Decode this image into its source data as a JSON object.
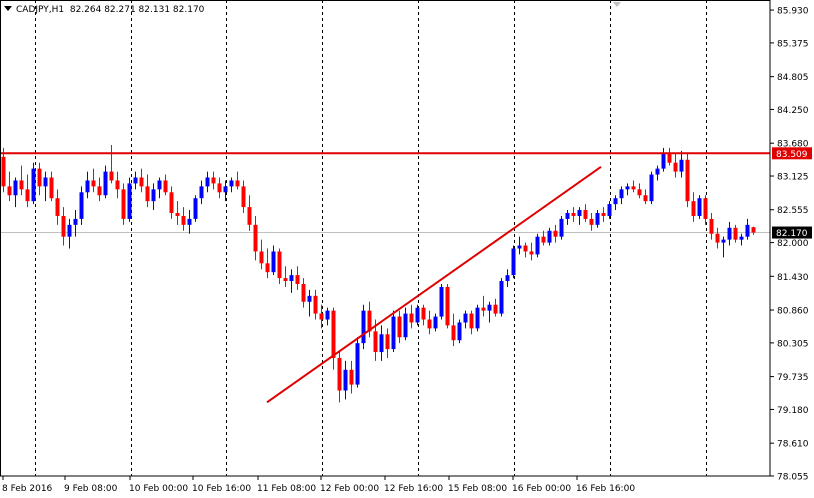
{
  "header": {
    "symbol": "CADJPY,H1",
    "ohlc": "82.264 82.271 82.131 82.170"
  },
  "colors": {
    "bull": "#0000ff",
    "bear": "#ff0000",
    "resistance": "#e00000",
    "trendline": "#e00000",
    "grid": "#000000",
    "current_price_line": "#c0c0c0",
    "axis_label_bg_current": "#000000",
    "axis_label_bg_resistance": "#e00000"
  },
  "chart_data": {
    "type": "candlestick",
    "title": "",
    "xlabel": "",
    "ylabel": "",
    "ylim": [
      78.055,
      86.1
    ],
    "grid": true,
    "price_ticks": [
      "85.930",
      "85.375",
      "84.805",
      "84.250",
      "83.680",
      "83.125",
      "82.555",
      "82.000",
      "81.430",
      "80.860",
      "80.305",
      "79.735",
      "79.180",
      "78.610",
      "78.055"
    ],
    "time_ticks": [
      "8 Feb 2016",
      "9 Feb 08:00",
      "10 Feb 00:00",
      "10 Feb 16:00",
      "11 Feb 08:00",
      "12 Feb 00:00",
      "12 Feb 16:00",
      "15 Feb 08:00",
      "16 Feb 00:00",
      "16 Feb 16:00"
    ],
    "current_price": "82.170",
    "resistance_price": "83.509",
    "trendline": {
      "start_price": 79.3,
      "end_price": 83.28
    },
    "candles": [
      [
        83.45,
        83.6,
        82.85,
        82.95
      ],
      [
        82.95,
        83.2,
        82.7,
        82.8
      ],
      [
        82.8,
        83.1,
        82.6,
        83.05
      ],
      [
        83.05,
        83.3,
        82.8,
        82.9
      ],
      [
        82.9,
        83.15,
        82.6,
        82.7
      ],
      [
        82.7,
        83.35,
        82.65,
        83.25
      ],
      [
        83.25,
        83.35,
        82.8,
        82.95
      ],
      [
        82.95,
        83.2,
        82.7,
        83.1
      ],
      [
        83.1,
        83.2,
        82.7,
        82.75
      ],
      [
        82.75,
        82.9,
        82.3,
        82.45
      ],
      [
        82.45,
        82.6,
        81.95,
        82.1
      ],
      [
        82.1,
        82.4,
        81.9,
        82.3
      ],
      [
        82.3,
        82.55,
        82.1,
        82.4
      ],
      [
        82.4,
        82.95,
        82.3,
        82.85
      ],
      [
        82.85,
        83.2,
        82.75,
        83.05
      ],
      [
        83.05,
        83.25,
        82.85,
        82.95
      ],
      [
        82.95,
        83.1,
        82.7,
        82.8
      ],
      [
        82.8,
        83.3,
        82.75,
        83.2
      ],
      [
        83.2,
        83.65,
        83.0,
        83.05
      ],
      [
        83.05,
        83.2,
        82.75,
        82.9
      ],
      [
        82.9,
        83.0,
        82.3,
        82.4
      ],
      [
        82.4,
        83.1,
        82.35,
        83.0
      ],
      [
        83.0,
        83.2,
        82.9,
        83.1
      ],
      [
        83.1,
        83.25,
        82.85,
        82.95
      ],
      [
        82.95,
        83.15,
        82.6,
        82.7
      ],
      [
        82.7,
        83.0,
        82.55,
        82.9
      ],
      [
        82.9,
        83.1,
        82.75,
        83.05
      ],
      [
        83.05,
        83.15,
        82.8,
        82.85
      ],
      [
        82.85,
        82.95,
        82.4,
        82.5
      ],
      [
        82.5,
        82.7,
        82.3,
        82.45
      ],
      [
        82.45,
        82.6,
        82.2,
        82.3
      ],
      [
        82.3,
        82.55,
        82.15,
        82.4
      ],
      [
        82.4,
        82.8,
        82.35,
        82.75
      ],
      [
        82.75,
        83.05,
        82.65,
        82.95
      ],
      [
        82.95,
        83.2,
        82.85,
        83.1
      ],
      [
        83.1,
        83.2,
        82.9,
        83.0
      ],
      [
        83.0,
        83.1,
        82.75,
        82.85
      ],
      [
        82.85,
        83.05,
        82.7,
        82.95
      ],
      [
        82.95,
        83.1,
        82.85,
        83.05
      ],
      [
        83.05,
        83.2,
        82.9,
        82.95
      ],
      [
        82.95,
        83.05,
        82.5,
        82.6
      ],
      [
        82.6,
        82.8,
        82.2,
        82.3
      ],
      [
        82.3,
        82.45,
        81.7,
        81.85
      ],
      [
        81.85,
        82.05,
        81.55,
        81.65
      ],
      [
        81.65,
        81.9,
        81.4,
        81.5
      ],
      [
        81.5,
        81.95,
        81.45,
        81.85
      ],
      [
        81.85,
        81.9,
        81.3,
        81.4
      ],
      [
        81.4,
        81.6,
        81.25,
        81.35
      ],
      [
        81.35,
        81.55,
        81.15,
        81.45
      ],
      [
        81.45,
        81.6,
        81.2,
        81.3
      ],
      [
        81.3,
        81.4,
        80.9,
        81.0
      ],
      [
        81.0,
        81.2,
        80.75,
        81.1
      ],
      [
        81.1,
        81.2,
        80.7,
        80.8
      ],
      [
        80.8,
        80.95,
        80.55,
        80.7
      ],
      [
        80.7,
        80.9,
        80.6,
        80.85
      ],
      [
        80.85,
        80.9,
        79.85,
        80.05
      ],
      [
        80.05,
        80.15,
        79.3,
        79.5
      ],
      [
        79.5,
        80.0,
        79.35,
        79.85
      ],
      [
        79.85,
        80.0,
        79.45,
        79.6
      ],
      [
        79.6,
        80.4,
        79.55,
        80.3
      ],
      [
        80.3,
        80.95,
        80.2,
        80.85
      ],
      [
        80.85,
        81.0,
        80.4,
        80.5
      ],
      [
        80.5,
        80.7,
        80.0,
        80.15
      ],
      [
        80.15,
        80.6,
        80.0,
        80.45
      ],
      [
        80.45,
        80.55,
        80.05,
        80.2
      ],
      [
        80.2,
        80.85,
        80.15,
        80.75
      ],
      [
        80.75,
        80.85,
        80.3,
        80.4
      ],
      [
        80.4,
        80.9,
        80.35,
        80.8
      ],
      [
        80.8,
        80.95,
        80.55,
        80.65
      ],
      [
        80.65,
        80.95,
        80.6,
        80.9
      ],
      [
        80.9,
        80.95,
        80.6,
        80.7
      ],
      [
        80.7,
        80.85,
        80.45,
        80.55
      ],
      [
        80.55,
        80.8,
        80.5,
        80.75
      ],
      [
        80.75,
        81.3,
        80.7,
        81.25
      ],
      [
        81.25,
        81.3,
        80.55,
        80.6
      ],
      [
        80.6,
        80.8,
        80.25,
        80.35
      ],
      [
        80.35,
        80.7,
        80.3,
        80.65
      ],
      [
        80.65,
        80.85,
        80.55,
        80.8
      ],
      [
        80.8,
        80.85,
        80.45,
        80.55
      ],
      [
        80.55,
        80.95,
        80.5,
        80.9
      ],
      [
        80.9,
        81.1,
        80.75,
        80.85
      ],
      [
        80.85,
        81.0,
        80.65,
        80.95
      ],
      [
        80.95,
        81.05,
        80.75,
        80.8
      ],
      [
        80.8,
        81.4,
        80.75,
        81.35
      ],
      [
        81.35,
        81.55,
        81.25,
        81.45
      ],
      [
        81.45,
        81.95,
        81.4,
        81.9
      ],
      [
        81.9,
        82.1,
        81.8,
        81.95
      ],
      [
        81.95,
        82.0,
        81.75,
        81.85
      ],
      [
        81.85,
        82.0,
        81.7,
        81.8
      ],
      [
        81.8,
        82.15,
        81.75,
        82.1
      ],
      [
        82.1,
        82.2,
        81.95,
        82.0
      ],
      [
        82.0,
        82.25,
        81.95,
        82.2
      ],
      [
        82.2,
        82.3,
        82.0,
        82.1
      ],
      [
        82.1,
        82.45,
        82.05,
        82.4
      ],
      [
        82.4,
        82.55,
        82.3,
        82.5
      ],
      [
        82.5,
        82.6,
        82.35,
        82.45
      ],
      [
        82.45,
        82.6,
        82.3,
        82.55
      ],
      [
        82.55,
        82.65,
        82.35,
        82.4
      ],
      [
        82.4,
        82.5,
        82.2,
        82.3
      ],
      [
        82.3,
        82.55,
        82.25,
        82.5
      ],
      [
        82.5,
        82.6,
        82.35,
        82.45
      ],
      [
        82.45,
        82.7,
        82.4,
        82.65
      ],
      [
        82.65,
        82.8,
        82.55,
        82.75
      ],
      [
        82.75,
        82.95,
        82.65,
        82.9
      ],
      [
        82.9,
        83.0,
        82.8,
        82.95
      ],
      [
        82.95,
        83.05,
        82.85,
        82.9
      ],
      [
        82.9,
        83.0,
        82.75,
        82.8
      ],
      [
        82.8,
        82.9,
        82.65,
        82.7
      ],
      [
        82.7,
        83.2,
        82.65,
        83.15
      ],
      [
        83.15,
        83.3,
        83.05,
        83.25
      ],
      [
        83.25,
        83.6,
        83.2,
        83.5
      ],
      [
        83.5,
        83.6,
        83.3,
        83.35
      ],
      [
        83.35,
        83.5,
        83.1,
        83.2
      ],
      [
        83.2,
        83.55,
        83.1,
        83.4
      ],
      [
        83.4,
        83.5,
        82.6,
        82.7
      ],
      [
        82.7,
        82.85,
        82.35,
        82.45
      ],
      [
        82.45,
        82.8,
        82.4,
        82.75
      ],
      [
        82.75,
        82.8,
        82.3,
        82.4
      ],
      [
        82.4,
        82.5,
        82.05,
        82.15
      ],
      [
        82.15,
        82.25,
        81.9,
        82.0
      ],
      [
        82.0,
        82.1,
        81.75,
        82.05
      ],
      [
        82.05,
        82.35,
        81.95,
        82.25
      ],
      [
        82.25,
        82.3,
        82.0,
        82.05
      ],
      [
        82.05,
        82.15,
        81.95,
        82.1
      ],
      [
        82.1,
        82.4,
        82.05,
        82.3
      ],
      [
        82.26,
        82.27,
        82.13,
        82.17
      ]
    ]
  }
}
